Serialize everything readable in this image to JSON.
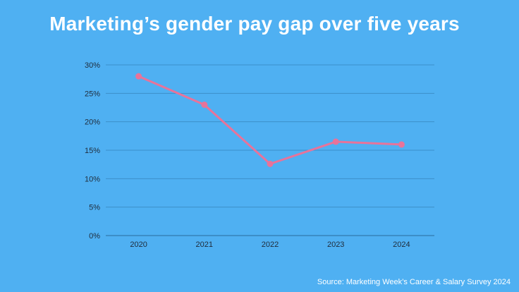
{
  "chart_data": {
    "type": "line",
    "title": "Marketing’s gender pay gap over five years",
    "source": "Source: Marketing Week’s Career & Salary Survey 2024",
    "categories": [
      "2020",
      "2021",
      "2022",
      "2023",
      "2024"
    ],
    "series": [
      {
        "values": [
          28.0,
          23.0,
          12.6,
          16.5,
          16.0
        ],
        "color": "#e8739a"
      }
    ],
    "y_ticks": [
      0,
      5,
      10,
      15,
      20,
      25,
      30
    ],
    "y_tick_labels": [
      "0%",
      "5%",
      "10%",
      "15%",
      "20%",
      "25%",
      "30%"
    ],
    "ylim": [
      0,
      30
    ],
    "grid": true,
    "legend": "none"
  }
}
